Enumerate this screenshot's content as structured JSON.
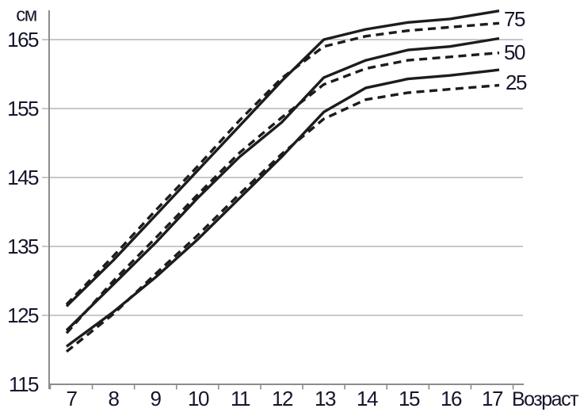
{
  "chart_data": {
    "type": "line",
    "ylabel": "см",
    "xlabel": "Возраст",
    "x": [
      7,
      8,
      9,
      10,
      11,
      12,
      13,
      14,
      15,
      16,
      17
    ],
    "y_ticks": [
      165,
      155,
      145,
      135,
      125,
      115
    ],
    "ylim": [
      115,
      170
    ],
    "grid": "horizontal gridlines at each 10 cm",
    "legend_position": "labels at right end of curve pairs",
    "series_labels": [
      "75",
      "50",
      "25"
    ],
    "series": [
      {
        "id": "percentile-75-solid",
        "percentile": "75",
        "line_style": "solid",
        "values": [
          127,
          133,
          139.5,
          146,
          152.5,
          159,
          165,
          166.5,
          167.5,
          168,
          169
        ]
      },
      {
        "id": "percentile-75-dashed",
        "percentile": "75",
        "line_style": "dashed",
        "values": [
          127.3,
          133.6,
          140.2,
          146.6,
          153.3,
          159.4,
          164,
          165.5,
          166.3,
          166.8,
          167.3
        ]
      },
      {
        "id": "percentile-50-solid",
        "percentile": "50",
        "line_style": "solid",
        "values": [
          123.5,
          129.5,
          135.5,
          142,
          148,
          153,
          159.5,
          162,
          163.5,
          164,
          165
        ]
      },
      {
        "id": "percentile-50-dashed",
        "percentile": "50",
        "line_style": "dashed",
        "values": [
          123.2,
          130,
          136.2,
          142.5,
          148.6,
          153.7,
          158.5,
          160.8,
          162,
          162.5,
          163
        ]
      },
      {
        "id": "percentile-25-solid",
        "percentile": "25",
        "line_style": "solid",
        "values": [
          121,
          125.5,
          130.5,
          136,
          142,
          148,
          154.5,
          158,
          159.3,
          159.8,
          160.5
        ]
      },
      {
        "id": "percentile-25-dashed",
        "percentile": "25",
        "line_style": "dashed",
        "values": [
          120.3,
          125.2,
          131,
          136.6,
          142.6,
          148.4,
          153.5,
          156.3,
          157.3,
          157.8,
          158.3
        ]
      }
    ]
  },
  "colors": {
    "line": "#1c1c1c",
    "grid": "#a6a6a6",
    "axis": "#8c8c8c",
    "text": "#15152b",
    "background": "#ffffff"
  }
}
